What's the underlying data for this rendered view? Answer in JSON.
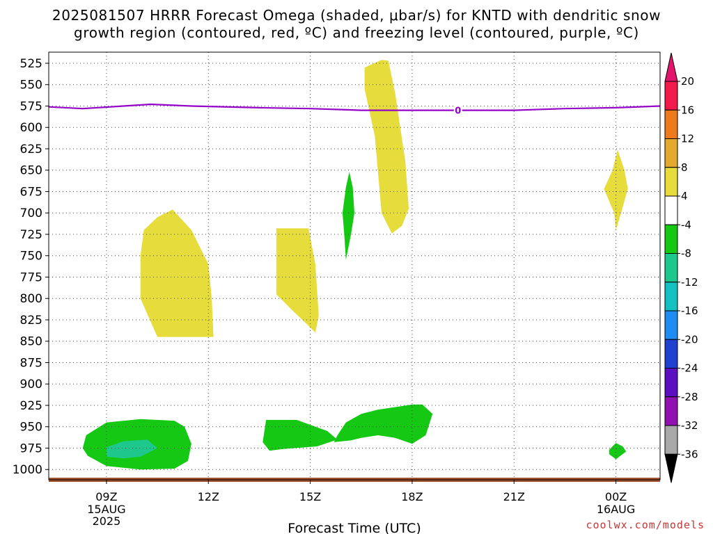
{
  "title_line1": "2025081507 HRRR Forecast Omega (shaded, μbar/s) for KNTD with dendritic snow",
  "title_line2": "growth region (contoured, red, ºC) and freezing level (contoured, purple, ºC)",
  "credit": "coolwx.com/models",
  "chart_data": {
    "type": "contour",
    "xlabel": "Forecast Time (UTC)",
    "ylabel": "",
    "x_range_hours": [
      7.3,
      25.3
    ],
    "y_range_mb": [
      512,
      1012
    ],
    "y_ticks": [
      525,
      550,
      575,
      600,
      625,
      650,
      675,
      700,
      725,
      750,
      775,
      800,
      825,
      850,
      875,
      900,
      925,
      950,
      975,
      1000
    ],
    "x_ticks": [
      {
        "hour": 9,
        "label": "09Z",
        "sub1": "15AUG",
        "sub2": "2025"
      },
      {
        "hour": 12,
        "label": "12Z",
        "sub1": "",
        "sub2": ""
      },
      {
        "hour": 15,
        "label": "15Z",
        "sub1": "",
        "sub2": ""
      },
      {
        "hour": 18,
        "label": "18Z",
        "sub1": "",
        "sub2": ""
      },
      {
        "hour": 21,
        "label": "21Z",
        "sub1": "",
        "sub2": ""
      },
      {
        "hour": 24,
        "label": "00Z",
        "sub1": "16AUG",
        "sub2": ""
      }
    ],
    "grid": true,
    "colorbar": {
      "labels": [
        20,
        16,
        12,
        8,
        4,
        -4,
        -8,
        -12,
        -16,
        -20,
        -24,
        -28,
        -32,
        -36
      ],
      "colors": [
        "#f21a4a",
        "#ee7a1e",
        "#e2aa2e",
        "#e6dc3c",
        "#ffffff",
        "#14c814",
        "#1ec88c",
        "#14c0c0",
        "#1e8cf0",
        "#2040d0",
        "#5a10c0",
        "#9010b0",
        "#a8a8a8"
      ],
      "top_arrow_color": "#e2146e",
      "bottom_arrow_color": "#000000"
    },
    "freezing_level": {
      "color": "#9400c8",
      "label": "0",
      "points": [
        [
          7.3,
          576
        ],
        [
          8.3,
          578
        ],
        [
          9.5,
          575
        ],
        [
          10.3,
          573
        ],
        [
          11.5,
          575
        ],
        [
          13.5,
          577
        ],
        [
          15,
          578
        ],
        [
          16.5,
          580
        ],
        [
          18,
          580
        ],
        [
          19.5,
          580
        ],
        [
          21,
          580
        ],
        [
          22.5,
          578
        ],
        [
          24,
          577
        ],
        [
          25.3,
          575
        ]
      ]
    },
    "ground_color": "#a0522d",
    "omega_regions": [
      {
        "color": "#e6dc3c",
        "points": [
          [
            16.6,
            530
          ],
          [
            17.1,
            521
          ],
          [
            17.3,
            522
          ],
          [
            17.5,
            560
          ],
          [
            17.8,
            640
          ],
          [
            17.9,
            695
          ],
          [
            17.7,
            715
          ],
          [
            17.4,
            724
          ],
          [
            17.1,
            700
          ],
          [
            16.9,
            610
          ],
          [
            16.6,
            555
          ]
        ]
      },
      {
        "color": "#e6dc3c",
        "points": [
          [
            10.5,
            705
          ],
          [
            10.95,
            696
          ],
          [
            11.5,
            720
          ],
          [
            12.0,
            760
          ],
          [
            12.1,
            800
          ],
          [
            12.15,
            845
          ],
          [
            10.5,
            845
          ],
          [
            10.0,
            800
          ],
          [
            10.0,
            750
          ],
          [
            10.1,
            720
          ]
        ]
      },
      {
        "color": "#e6dc3c",
        "points": [
          [
            14.0,
            718
          ],
          [
            14.95,
            718
          ],
          [
            15.15,
            760
          ],
          [
            15.25,
            820
          ],
          [
            15.15,
            840
          ],
          [
            14.9,
            830
          ],
          [
            14.5,
            815
          ],
          [
            14.0,
            795
          ]
        ]
      },
      {
        "color": "#e6dc3c",
        "points": [
          [
            24.05,
            626
          ],
          [
            24.25,
            650
          ],
          [
            24.35,
            672
          ],
          [
            24.15,
            700
          ],
          [
            24.0,
            720
          ],
          [
            23.95,
            700
          ],
          [
            23.65,
            672
          ],
          [
            23.9,
            650
          ]
        ]
      },
      {
        "color": "#14c814",
        "points": [
          [
            16.15,
            652
          ],
          [
            16.25,
            670
          ],
          [
            16.3,
            700
          ],
          [
            16.2,
            725
          ],
          [
            16.05,
            755
          ],
          [
            16.0,
            725
          ],
          [
            15.95,
            700
          ],
          [
            16.05,
            670
          ]
        ]
      },
      {
        "color": "#14c814",
        "points": [
          [
            8.4,
            960
          ],
          [
            9.0,
            945
          ],
          [
            10.0,
            941
          ],
          [
            11.0,
            943
          ],
          [
            11.3,
            950
          ],
          [
            11.5,
            970
          ],
          [
            11.4,
            990
          ],
          [
            11.0,
            999
          ],
          [
            10.0,
            1000
          ],
          [
            9.0,
            996
          ],
          [
            8.45,
            984
          ],
          [
            8.3,
            975
          ]
        ]
      },
      {
        "color": "#1ec88c",
        "points": [
          [
            9.0,
            974
          ],
          [
            9.5,
            967
          ],
          [
            10.2,
            965
          ],
          [
            10.5,
            975
          ],
          [
            10.0,
            985
          ],
          [
            9.5,
            987
          ],
          [
            9.0,
            985
          ]
        ]
      },
      {
        "color": "#14c814",
        "points": [
          [
            13.7,
            942
          ],
          [
            14.2,
            942
          ],
          [
            14.6,
            942
          ],
          [
            15.5,
            955
          ],
          [
            15.8,
            965
          ],
          [
            15.2,
            973
          ],
          [
            14.2,
            976
          ],
          [
            13.8,
            978
          ],
          [
            13.6,
            968
          ]
        ]
      },
      {
        "color": "#14c814",
        "points": [
          [
            15.8,
            960
          ],
          [
            16.05,
            945
          ],
          [
            16.5,
            935
          ],
          [
            17.0,
            930
          ],
          [
            17.5,
            927
          ],
          [
            18.0,
            924
          ],
          [
            18.3,
            924
          ],
          [
            18.6,
            935
          ],
          [
            18.4,
            960
          ],
          [
            18.0,
            970
          ],
          [
            17.5,
            963
          ],
          [
            17.0,
            960
          ],
          [
            16.5,
            963
          ],
          [
            16.2,
            966
          ],
          [
            15.7,
            968
          ]
        ]
      },
      {
        "color": "#14c814",
        "points": [
          [
            23.8,
            977
          ],
          [
            24.0,
            969
          ],
          [
            24.2,
            973
          ],
          [
            24.3,
            979
          ],
          [
            24.0,
            988
          ],
          [
            23.8,
            982
          ]
        ]
      }
    ]
  }
}
